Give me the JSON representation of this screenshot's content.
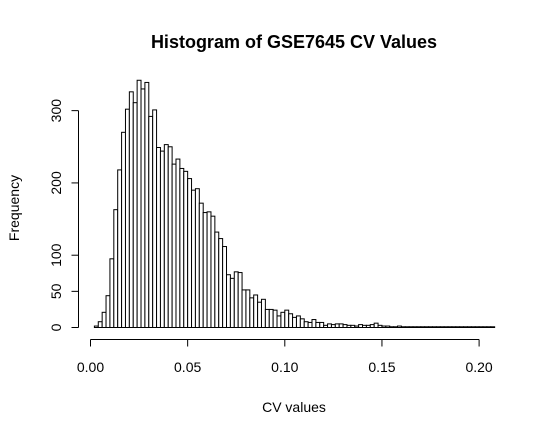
{
  "chart_data": {
    "type": "bar",
    "title": "Histogram of GSE7645 CV Values",
    "xlabel": "CV values",
    "ylabel": "Frequency",
    "xlim": [
      0.0,
      0.21
    ],
    "ylim": [
      0,
      330
    ],
    "x_ticks": [
      0.0,
      0.05,
      0.1,
      0.15,
      0.2
    ],
    "x_tick_labels": [
      "0.00",
      "0.05",
      "0.10",
      "0.15",
      "0.20"
    ],
    "y_ticks": [
      0,
      50,
      100,
      200,
      300
    ],
    "y_tick_labels": [
      "0",
      "50",
      "100",
      "200",
      "300"
    ],
    "bin_width": 0.002,
    "bin_start": 0.002,
    "values": [
      2,
      8,
      21,
      44,
      95,
      163,
      218,
      270,
      302,
      326,
      311,
      342,
      330,
      339,
      292,
      301,
      249,
      244,
      253,
      250,
      226,
      233,
      220,
      216,
      206,
      190,
      192,
      172,
      159,
      160,
      154,
      132,
      123,
      112,
      73,
      68,
      77,
      76,
      52,
      52,
      41,
      45,
      35,
      39,
      25,
      25,
      24,
      16,
      21,
      24,
      19,
      14,
      16,
      12,
      8,
      7,
      11,
      7,
      7,
      3,
      5,
      4,
      5,
      5,
      4,
      3,
      3,
      2,
      4,
      3,
      3,
      4,
      6,
      3,
      2,
      2,
      1,
      1,
      2,
      1,
      1,
      1,
      1,
      1,
      1,
      1,
      1,
      1,
      1,
      1,
      1,
      1,
      1,
      1,
      1,
      1,
      1,
      1,
      1,
      1,
      1,
      1,
      1
    ]
  }
}
